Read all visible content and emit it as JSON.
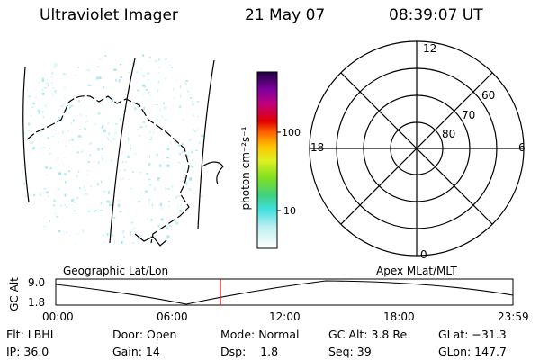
{
  "header": {
    "instrument": "Ultraviolet Imager",
    "date": "21 May 07",
    "time": "08:39:07 UT"
  },
  "colorbar": {
    "unit_label": "photon cm⁻²s⁻¹",
    "ticks": [
      "100",
      "10"
    ]
  },
  "geo_panel": {
    "label": "Geographic Lat/Lon"
  },
  "polar_panel": {
    "label": "Apex MLat/MLT",
    "mlt_labels": {
      "top": "12",
      "left": "18",
      "right": "6",
      "bottom": "0"
    },
    "lat_labels": [
      "60",
      "70",
      "80"
    ]
  },
  "timeline": {
    "axis_label": "GC Alt",
    "y_ticks": [
      "9.0",
      "1.8"
    ],
    "x_ticks": [
      "00:00",
      "06:00",
      "12:00",
      "18:00",
      "23:59"
    ],
    "current_fraction": 0.36,
    "cursor_color": "#e00000"
  },
  "footer": {
    "col1": [
      "Flt: LBHL",
      "IP: 36.0"
    ],
    "col2": [
      "Door: Open",
      "Gain: 14"
    ],
    "col3": [
      "Mode: Normal",
      "Dsp:    1.8"
    ],
    "col4": [
      "GC Alt: 3.8 Re",
      "Seq: 39"
    ],
    "col5": [
      "GLat: −31.3",
      "GLon: 147.7"
    ]
  }
}
